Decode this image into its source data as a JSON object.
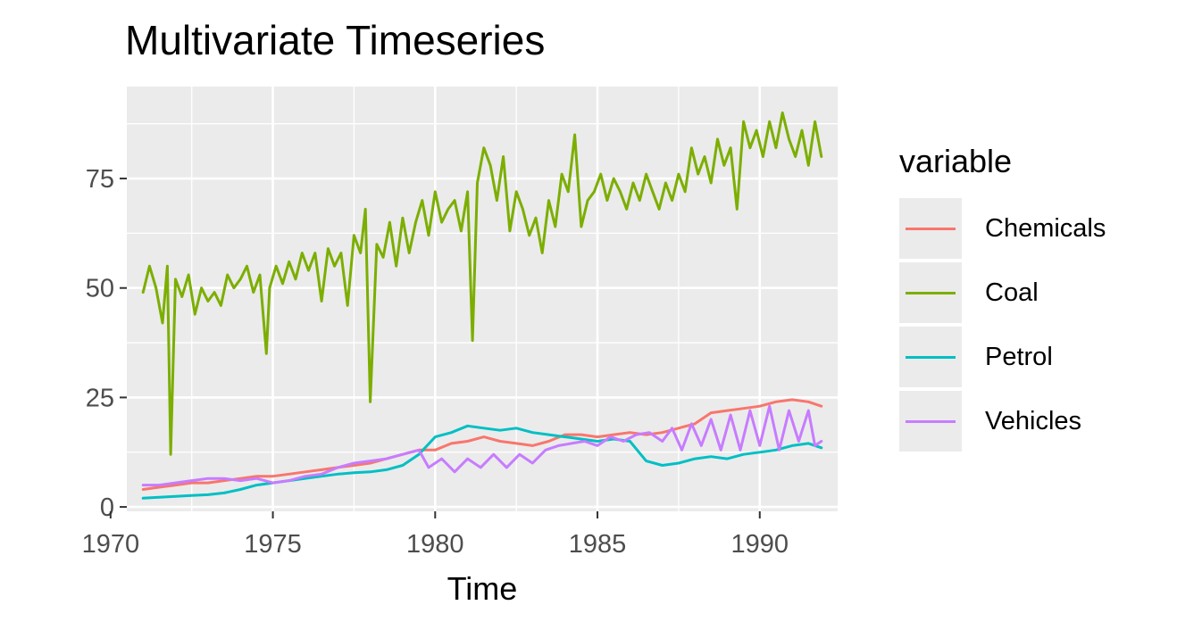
{
  "chart_data": {
    "type": "line",
    "title": "Multivariate Timeseries",
    "xlabel": "Time",
    "ylabel": "",
    "xlim": [
      1970.5,
      1992.4
    ],
    "ylim": [
      -1,
      96
    ],
    "xticks": [
      1970,
      1975,
      1980,
      1985,
      1990
    ],
    "xtick_labels": [
      "1970",
      "1975",
      "1980",
      "1985",
      "1990"
    ],
    "yticks": [
      0,
      25,
      50,
      75
    ],
    "ytick_labels": [
      "0",
      "25",
      "50",
      "75"
    ],
    "grid": true,
    "legend": {
      "title": "variable",
      "position": "right"
    },
    "series": [
      {
        "name": "Chemicals",
        "color": "#F8766D",
        "x": [
          1971,
          1971.5,
          1972,
          1972.5,
          1973,
          1973.5,
          1974,
          1974.5,
          1975,
          1975.5,
          1976,
          1976.5,
          1977,
          1977.5,
          1978,
          1978.5,
          1979,
          1979.5,
          1980,
          1980.5,
          1981,
          1981.5,
          1982,
          1982.5,
          1983,
          1983.5,
          1984,
          1984.5,
          1985,
          1985.5,
          1986,
          1986.5,
          1987,
          1987.5,
          1988,
          1988.5,
          1989,
          1989.5,
          1990,
          1990.5,
          1991,
          1991.5,
          1991.9
        ],
        "y": [
          4,
          4.5,
          5,
          5.5,
          5.5,
          6,
          6.5,
          7,
          7,
          7.5,
          8,
          8.5,
          9,
          9.5,
          10,
          11,
          12,
          13,
          13,
          14.5,
          15,
          16,
          15,
          14.5,
          14,
          15,
          16.5,
          16.5,
          16,
          16.5,
          17,
          16.5,
          17,
          18,
          19,
          21.5,
          22,
          22.5,
          23,
          24,
          24.5,
          24,
          23
        ]
      },
      {
        "name": "Coal",
        "color": "#7CAE00",
        "x": [
          1971,
          1971.2,
          1971.4,
          1971.6,
          1971.75,
          1971.85,
          1972,
          1972.2,
          1972.4,
          1972.6,
          1972.8,
          1973,
          1973.2,
          1973.4,
          1973.6,
          1973.8,
          1974,
          1974.2,
          1974.4,
          1974.6,
          1974.8,
          1974.9,
          1975.1,
          1975.3,
          1975.5,
          1975.7,
          1975.9,
          1976.1,
          1976.3,
          1976.5,
          1976.7,
          1976.9,
          1977.1,
          1977.3,
          1977.5,
          1977.7,
          1977.85,
          1978,
          1978.2,
          1978.4,
          1978.6,
          1978.8,
          1979,
          1979.2,
          1979.4,
          1979.6,
          1979.8,
          1980,
          1980.2,
          1980.4,
          1980.6,
          1980.8,
          1981,
          1981.15,
          1981.3,
          1981.5,
          1981.7,
          1981.9,
          1982.1,
          1982.3,
          1982.5,
          1982.7,
          1982.9,
          1983.1,
          1983.3,
          1983.5,
          1983.7,
          1983.9,
          1984.1,
          1984.3,
          1984.5,
          1984.7,
          1984.9,
          1985.1,
          1985.3,
          1985.5,
          1985.7,
          1985.9,
          1986.1,
          1986.3,
          1986.5,
          1986.7,
          1986.9,
          1987.1,
          1987.3,
          1987.5,
          1987.7,
          1987.9,
          1988.1,
          1988.3,
          1988.5,
          1988.7,
          1988.9,
          1989.1,
          1989.3,
          1989.5,
          1989.7,
          1989.9,
          1990.1,
          1990.3,
          1990.5,
          1990.7,
          1990.9,
          1991.1,
          1991.3,
          1991.5,
          1991.7,
          1991.9
        ],
        "y": [
          49,
          55,
          50,
          42,
          55,
          12,
          52,
          48,
          53,
          44,
          50,
          47,
          49,
          46,
          53,
          50,
          52,
          55,
          49,
          53,
          35,
          50,
          55,
          51,
          56,
          52,
          58,
          54,
          58,
          47,
          59,
          55,
          58,
          46,
          62,
          58,
          68,
          24,
          60,
          57,
          65,
          55,
          66,
          58,
          65,
          70,
          62,
          72,
          65,
          68,
          70,
          63,
          72,
          38,
          74,
          82,
          78,
          70,
          80,
          63,
          72,
          68,
          62,
          66,
          58,
          70,
          64,
          76,
          72,
          85,
          64,
          70,
          72,
          76,
          70,
          75,
          72,
          68,
          74,
          70,
          76,
          72,
          68,
          74,
          70,
          76,
          72,
          82,
          76,
          80,
          74,
          84,
          78,
          82,
          68,
          88,
          82,
          86,
          80,
          88,
          82,
          90,
          84,
          80,
          86,
          78,
          88,
          80
        ]
      },
      {
        "name": "Petrol",
        "color": "#00BFC4",
        "x": [
          1971,
          1971.5,
          1972,
          1972.5,
          1973,
          1973.5,
          1974,
          1974.5,
          1975,
          1975.5,
          1976,
          1976.5,
          1977,
          1977.5,
          1978,
          1978.5,
          1979,
          1979.5,
          1980,
          1980.5,
          1981,
          1981.5,
          1982,
          1982.5,
          1983,
          1983.5,
          1984,
          1984.5,
          1985,
          1985.5,
          1986,
          1986.5,
          1987,
          1987.5,
          1988,
          1988.5,
          1989,
          1989.5,
          1990,
          1990.5,
          1991,
          1991.5,
          1991.9
        ],
        "y": [
          2,
          2.2,
          2.4,
          2.6,
          2.8,
          3.2,
          4,
          5,
          5.5,
          6,
          6.5,
          7,
          7.5,
          7.8,
          8,
          8.5,
          9.5,
          12,
          16,
          17,
          18.5,
          18,
          17.5,
          18,
          17,
          16.5,
          16,
          15.5,
          15,
          15.5,
          15,
          10.5,
          9.5,
          10,
          11,
          11.5,
          11,
          12,
          12.5,
          13,
          14,
          14.5,
          13.5
        ]
      },
      {
        "name": "Vehicles",
        "color": "#C77CFF",
        "x": [
          1971,
          1971.5,
          1972,
          1972.5,
          1973,
          1973.5,
          1974,
          1974.5,
          1975,
          1975.5,
          1976,
          1976.5,
          1977,
          1977.5,
          1978,
          1978.5,
          1979,
          1979.5,
          1979.8,
          1980.2,
          1980.6,
          1981,
          1981.4,
          1981.8,
          1982.2,
          1982.6,
          1983,
          1983.4,
          1983.8,
          1984.2,
          1984.6,
          1985,
          1985.4,
          1985.8,
          1986.2,
          1986.6,
          1987,
          1987.3,
          1987.6,
          1987.9,
          1988.2,
          1988.5,
          1988.8,
          1989.1,
          1989.4,
          1989.7,
          1990,
          1990.3,
          1990.6,
          1990.9,
          1991.2,
          1991.5,
          1991.7,
          1991.9
        ],
        "y": [
          5,
          5,
          5.5,
          6,
          6.5,
          6.5,
          6,
          6.5,
          5.5,
          6,
          7,
          7.5,
          9,
          10,
          10.5,
          11,
          12,
          13,
          9,
          11,
          8,
          11,
          9,
          12,
          9,
          12,
          10,
          13,
          14,
          14.5,
          15,
          14,
          16,
          15,
          16.5,
          17,
          15,
          18,
          13,
          19,
          14,
          20,
          13,
          21,
          13,
          22,
          14,
          23,
          13,
          22,
          15,
          22,
          14,
          15
        ]
      }
    ]
  }
}
